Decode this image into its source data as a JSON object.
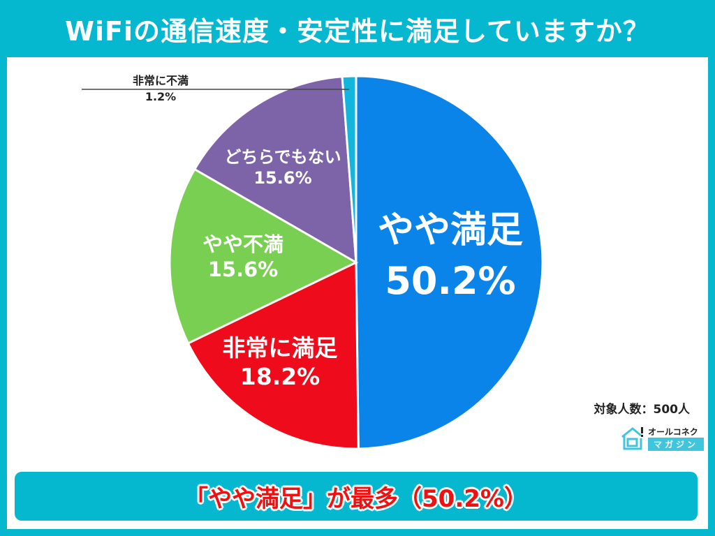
{
  "header": {
    "title": "WiFiの通信速度・安定性に満足していますか？"
  },
  "colors": {
    "frame": "#06b8cf",
    "slice_very_satisfied": "#ee0b1c",
    "slice_somewhat_satisfied": "#0a84e8",
    "slice_neutral": "#7d64a8",
    "slice_somewhat_dissatisfied": "#79cf52",
    "slice_very_dissatisfied": "#12b6dc",
    "banner_text": "#ee1111"
  },
  "chart_data": {
    "type": "pie",
    "title": "WiFiの通信速度・安定性に満足していますか？",
    "start_angle": "12 o'clock, clockwise",
    "categories": [
      "やや満足",
      "非常に満足",
      "やや不満",
      "どちらでもない",
      "非常に不満"
    ],
    "values": [
      50.2,
      18.2,
      15.6,
      15.6,
      1.2
    ],
    "unit": "%",
    "labels": {
      "somewhat_satisfied": {
        "name": "やや満足",
        "value": "50.2%"
      },
      "very_satisfied": {
        "name": "非常に満足",
        "value": "18.2%"
      },
      "somewhat_dissatisfied": {
        "name": "やや不満",
        "value": "15.6%"
      },
      "neutral": {
        "name": "どちらでもない",
        "value": "15.6%"
      },
      "very_dissatisfied": {
        "name": "非常に不満",
        "value": "1.2%"
      }
    },
    "sample_size": "対象人数：500人"
  },
  "logo": {
    "line1": "オールコネクト",
    "line2": "マガジン"
  },
  "banner": {
    "text": "「やや満足」が最多（50.2%）"
  }
}
